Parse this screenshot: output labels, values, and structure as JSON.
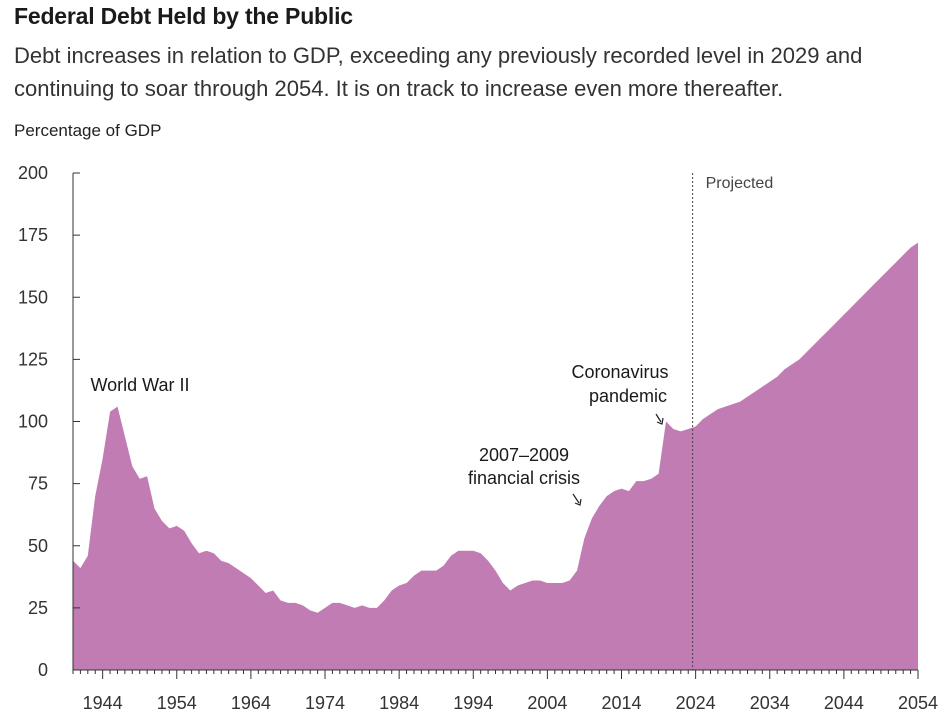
{
  "title": "Federal Debt Held by the Public",
  "subtitle": "Debt increases in relation to GDP, exceeding any previously recorded level in 2029 and continuing to soar through 2054. It is on track to increase even more thereafter.",
  "colors": {
    "area": "#c27cb4",
    "axis": "#333333"
  },
  "chart_data": {
    "type": "area",
    "title": "Federal Debt Held by the Public",
    "ylabel": "Percentage of GDP",
    "xlabel": "",
    "ylim": [
      0,
      200
    ],
    "xlim": [
      1940,
      2054
    ],
    "yticks": [
      0,
      25,
      50,
      75,
      100,
      125,
      150,
      175,
      200
    ],
    "xticks": [
      1944,
      1954,
      1964,
      1974,
      1984,
      1994,
      2004,
      2014,
      2024,
      2034,
      2044,
      2054
    ],
    "projected_from": 2024,
    "projected_label": "Projected",
    "series": [
      {
        "x": [
          1940,
          1941,
          1942,
          1943,
          1944,
          1945,
          1946,
          1947,
          1948,
          1949,
          1950,
          1951,
          1952,
          1953,
          1954,
          1955,
          1956,
          1957,
          1958,
          1959,
          1960,
          1961,
          1962,
          1963,
          1964,
          1965,
          1966,
          1967,
          1968,
          1969,
          1970,
          1971,
          1972,
          1973,
          1974,
          1975,
          1976,
          1977,
          1978,
          1979,
          1980,
          1981,
          1982,
          1983,
          1984,
          1985,
          1986,
          1987,
          1988,
          1989,
          1990,
          1991,
          1992,
          1993,
          1994,
          1995,
          1996,
          1997,
          1998,
          1999,
          2000,
          2001,
          2002,
          2003,
          2004,
          2005,
          2006,
          2007,
          2008,
          2009,
          2010,
          2011,
          2012,
          2013,
          2014,
          2015,
          2016,
          2017,
          2018,
          2019,
          2020,
          2021,
          2022,
          2023,
          2024,
          2025,
          2026,
          2027,
          2028,
          2029,
          2030,
          2031,
          2032,
          2033,
          2034,
          2035,
          2036,
          2037,
          2038,
          2039,
          2040,
          2041,
          2042,
          2043,
          2044,
          2045,
          2046,
          2047,
          2048,
          2049,
          2050,
          2051,
          2052,
          2053,
          2054
        ],
        "y": [
          44,
          41,
          46,
          70,
          85,
          104,
          106,
          94,
          82,
          77,
          78,
          65,
          60,
          57,
          58,
          56,
          51,
          47,
          48,
          47,
          44,
          43,
          41,
          39,
          37,
          34,
          31,
          32,
          28,
          27,
          27,
          26,
          24,
          23,
          25,
          27,
          27,
          26,
          25,
          26,
          25,
          25,
          28,
          32,
          34,
          35,
          38,
          40,
          40,
          40,
          42,
          46,
          48,
          48,
          48,
          47,
          44,
          40,
          35,
          32,
          34,
          35,
          36,
          36,
          35,
          35,
          35,
          36,
          40,
          53,
          61,
          66,
          70,
          72,
          73,
          72,
          76,
          76,
          77,
          79,
          100,
          97,
          96,
          97,
          98,
          101,
          103,
          105,
          106,
          107,
          108,
          110,
          112,
          114,
          116,
          118,
          121,
          123,
          125,
          128,
          131,
          134,
          137,
          140,
          143,
          146,
          149,
          152,
          155,
          158,
          161,
          164,
          167,
          170,
          172
        ]
      }
    ],
    "annotations": [
      {
        "lines": [
          "World War II"
        ],
        "x": 1946
      },
      {
        "lines": [
          "2007–2009",
          "financial crisis"
        ],
        "x": 2008
      },
      {
        "lines": [
          "Coronavirus",
          "pandemic"
        ],
        "x": 2020
      }
    ]
  }
}
